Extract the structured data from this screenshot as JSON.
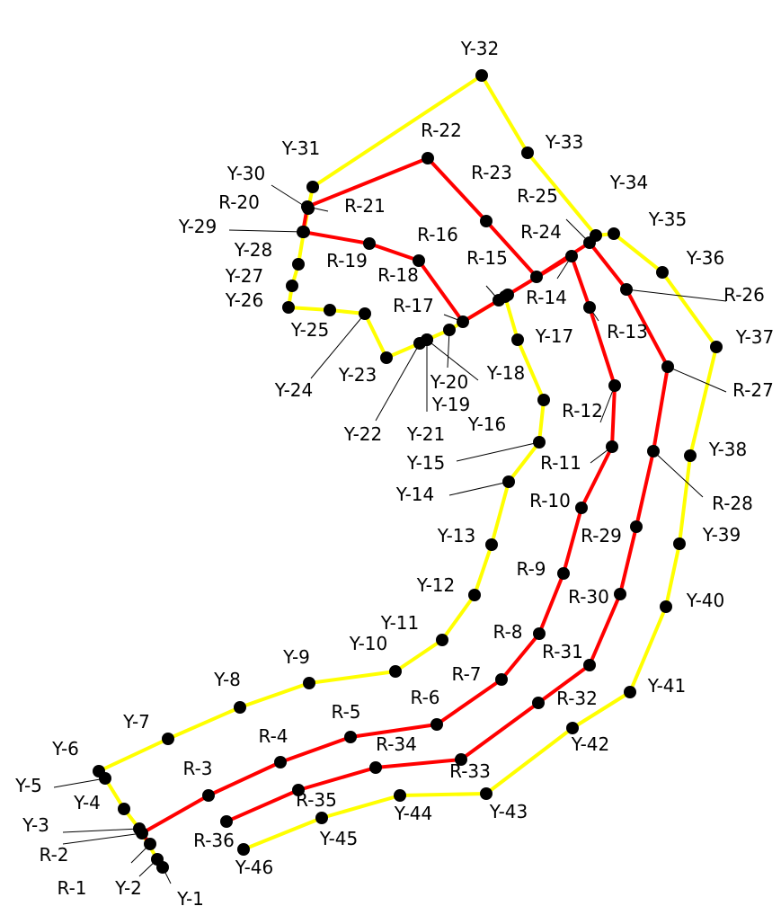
{
  "routes": [
    {
      "name": "Y",
      "color": "#ffff00"
    },
    {
      "name": "R",
      "color": "#ff0000"
    }
  ],
  "point_color": "#000000",
  "yellow_points": [
    "Y-1",
    "Y-2",
    "Y-3",
    "Y-4",
    "Y-5",
    "Y-6",
    "Y-7",
    "Y-8",
    "Y-9",
    "Y-10",
    "Y-11",
    "Y-12",
    "Y-13",
    "Y-14",
    "Y-15",
    "Y-16",
    "Y-17",
    "Y-18",
    "Y-19",
    "Y-20",
    "Y-21",
    "Y-22",
    "Y-23",
    "Y-24",
    "Y-25",
    "Y-26",
    "Y-27",
    "Y-28",
    "Y-29",
    "Y-30",
    "Y-31",
    "Y-32",
    "Y-33",
    "Y-34",
    "Y-35",
    "Y-36",
    "Y-37",
    "Y-38",
    "Y-39",
    "Y-40",
    "Y-41",
    "Y-42",
    "Y-43",
    "Y-44",
    "Y-45",
    "Y-46"
  ],
  "red_points": [
    "R-1",
    "R-2",
    "R-3",
    "R-4",
    "R-5",
    "R-6",
    "R-7",
    "R-8",
    "R-9",
    "R-10",
    "R-11",
    "R-12",
    "R-13",
    "R-14",
    "R-15",
    "R-16",
    "R-17",
    "R-18",
    "R-19",
    "R-20",
    "R-21",
    "R-22",
    "R-23",
    "R-24",
    "R-25",
    "R-26",
    "R-27",
    "R-28",
    "R-29",
    "R-30",
    "R-31",
    "R-32",
    "R-33",
    "R-34",
    "R-35",
    "R-36"
  ]
}
